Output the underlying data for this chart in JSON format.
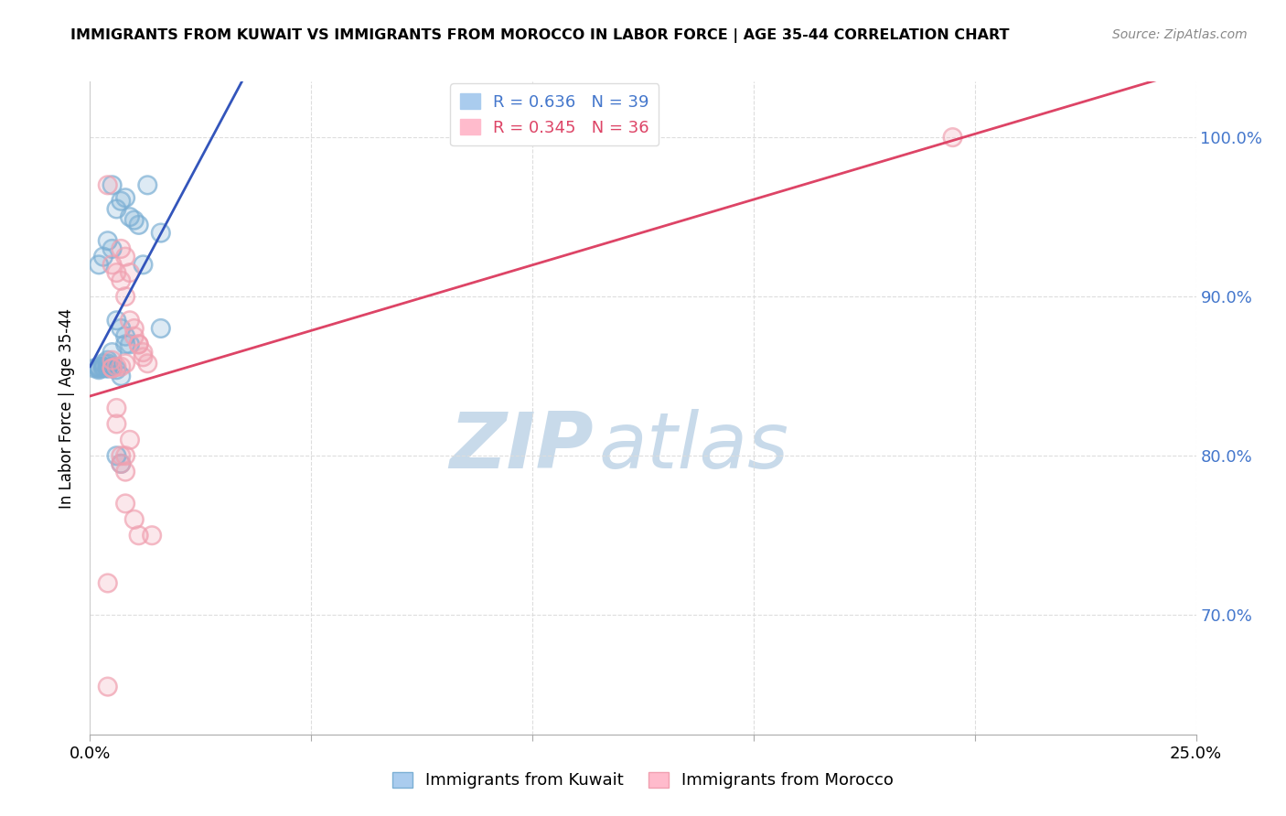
{
  "title": "IMMIGRANTS FROM KUWAIT VS IMMIGRANTS FROM MOROCCO IN LABOR FORCE | AGE 35-44 CORRELATION CHART",
  "source_text": "Source: ZipAtlas.com",
  "ylabel": "In Labor Force | Age 35-44",
  "xlim": [
    0.0,
    0.25
  ],
  "ylim": [
    0.625,
    1.035
  ],
  "xticks": [
    0.0,
    0.05,
    0.1,
    0.15,
    0.2,
    0.25
  ],
  "xticklabels": [
    "0.0%",
    "",
    "",
    "",
    "",
    "25.0%"
  ],
  "yticks_right": [
    0.7,
    0.8,
    0.9,
    1.0
  ],
  "ytick_labels_right": [
    "70.0%",
    "80.0%",
    "90.0%",
    "100.0%"
  ],
  "kuwait_color": "#7bafd4",
  "morocco_color": "#f0a0b0",
  "kuwait_line_color": "#3355bb",
  "morocco_line_color": "#dd4466",
  "kuwait_R": 0.636,
  "kuwait_N": 39,
  "morocco_R": 0.345,
  "morocco_N": 36,
  "legend_label_kuwait": "Immigrants from Kuwait",
  "legend_label_morocco": "Immigrants from Morocco",
  "watermark_zip": "ZIP",
  "watermark_atlas": "atlas",
  "watermark_color": "#c8daea",
  "axis_label_color": "#4477cc",
  "grid_color": "#dddddd",
  "background_color": "#ffffff",
  "kuwait_scatter_x": [
    0.005,
    0.007,
    0.009,
    0.011,
    0.008,
    0.01,
    0.006,
    0.013,
    0.016,
    0.012,
    0.004,
    0.005,
    0.003,
    0.002,
    0.006,
    0.007,
    0.008,
    0.009,
    0.005,
    0.004,
    0.003,
    0.002,
    0.004,
    0.005,
    0.006,
    0.003,
    0.002,
    0.004,
    0.007,
    0.008,
    0.003,
    0.004,
    0.005,
    0.002,
    0.001,
    0.006,
    0.007,
    0.016,
    0.002
  ],
  "kuwait_scatter_y": [
    0.97,
    0.96,
    0.95,
    0.945,
    0.962,
    0.948,
    0.955,
    0.97,
    0.94,
    0.92,
    0.935,
    0.93,
    0.925,
    0.92,
    0.885,
    0.88,
    0.875,
    0.87,
    0.865,
    0.86,
    0.858,
    0.856,
    0.858,
    0.856,
    0.854,
    0.856,
    0.854,
    0.855,
    0.85,
    0.87,
    0.855,
    0.855,
    0.855,
    0.855,
    0.855,
    0.8,
    0.795,
    0.88,
    0.855
  ],
  "morocco_scatter_x": [
    0.004,
    0.005,
    0.006,
    0.007,
    0.008,
    0.009,
    0.01,
    0.011,
    0.012,
    0.013,
    0.007,
    0.008,
    0.009,
    0.01,
    0.011,
    0.012,
    0.005,
    0.006,
    0.007,
    0.008,
    0.006,
    0.007,
    0.008,
    0.009,
    0.005,
    0.006,
    0.008,
    0.011,
    0.014,
    0.01,
    0.004,
    0.005,
    0.007,
    0.008,
    0.004,
    0.195
  ],
  "morocco_scatter_y": [
    0.97,
    0.92,
    0.915,
    0.91,
    0.9,
    0.885,
    0.875,
    0.87,
    0.865,
    0.858,
    0.93,
    0.925,
    0.915,
    0.88,
    0.87,
    0.862,
    0.855,
    0.83,
    0.8,
    0.8,
    0.82,
    0.795,
    0.79,
    0.81,
    0.86,
    0.856,
    0.77,
    0.75,
    0.75,
    0.76,
    0.655,
    0.855,
    0.856,
    0.858,
    0.72,
    1.0
  ]
}
